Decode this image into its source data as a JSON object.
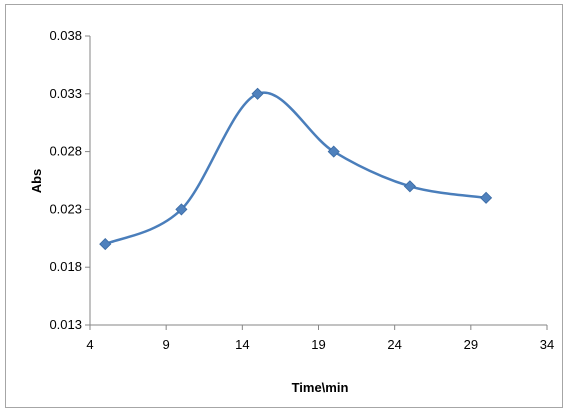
{
  "chart_data": {
    "type": "line",
    "title": "",
    "xlabel": "Time\\min",
    "ylabel": "Abs",
    "xlim": [
      4,
      34
    ],
    "ylim": [
      0.013,
      0.038
    ],
    "xticks": [
      "4",
      "9",
      "14",
      "19",
      "24",
      "29",
      "34"
    ],
    "yticks": [
      "0.013",
      "0.018",
      "0.023",
      "0.028",
      "0.033",
      "0.038"
    ],
    "grid": false,
    "legend": "none",
    "smooth": true,
    "marker": "diamond",
    "series": [
      {
        "color": "#4a7ebb",
        "marker_color": "#4f81bd",
        "x": [
          5,
          10,
          15,
          20,
          25,
          30
        ],
        "y": [
          0.02,
          0.023,
          0.033,
          0.028,
          0.025,
          0.024
        ]
      }
    ]
  }
}
